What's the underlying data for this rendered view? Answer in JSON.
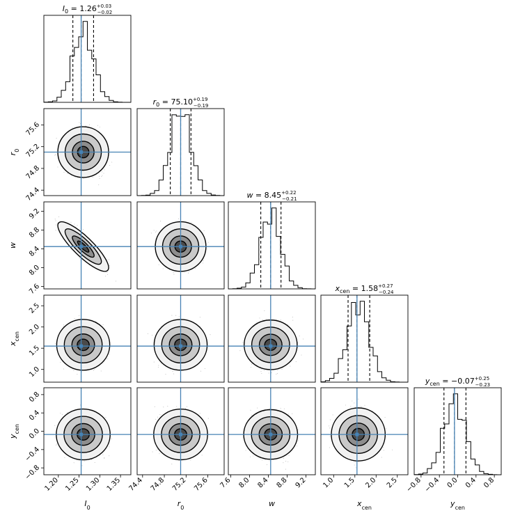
{
  "chart_data": {
    "type": "scatter",
    "subtype": "corner-plot",
    "parameters": [
      {
        "key": "I0",
        "label": "I",
        "label_sub": "0",
        "title_prefix": "I",
        "title_sub": "0",
        "median": "1.26",
        "err_plus": "+0.03",
        "err_minus": "−0.02",
        "truth": 1.255,
        "q_low": 1.235,
        "q_high": 1.285,
        "range": [
          1.165,
          1.375
        ],
        "ticks": [
          1.2,
          1.25,
          1.3,
          1.35
        ],
        "tick_labels": [
          "1.20",
          "1.25",
          "1.30",
          "1.35"
        ],
        "mean": 1.26,
        "sd": 0.025
      },
      {
        "key": "r0",
        "label": "r",
        "label_sub": "0",
        "title_prefix": "r",
        "title_sub": "0",
        "median": "75.10",
        "err_plus": "+0.19",
        "err_minus": "−0.19",
        "truth": 75.1,
        "q_low": 74.91,
        "q_high": 75.29,
        "range": [
          74.3,
          75.9
        ],
        "ticks": [
          74.4,
          74.8,
          75.2,
          75.6
        ],
        "tick_labels": [
          "74.4",
          "74.8",
          "75.2",
          "75.6"
        ],
        "mean": 75.1,
        "sd": 0.19
      },
      {
        "key": "w",
        "label": "w",
        "label_sub": "",
        "title_prefix": "w",
        "title_sub": "",
        "median": "8.45",
        "err_plus": "+0.22",
        "err_minus": "−0.21",
        "truth": 8.45,
        "q_low": 8.24,
        "q_high": 8.67,
        "range": [
          7.55,
          9.4
        ],
        "ticks": [
          7.6,
          8.0,
          8.4,
          8.8,
          9.2
        ],
        "tick_labels": [
          "7.6",
          "8.0",
          "8.4",
          "8.8",
          "9.2"
        ],
        "mean": 8.45,
        "sd": 0.215
      },
      {
        "key": "xcen",
        "label": "x",
        "label_sub": "cen",
        "title_prefix": "x",
        "title_sub": "cen",
        "median": "1.58",
        "err_plus": "+0.27",
        "err_minus": "−0.24",
        "truth": 1.55,
        "q_low": 1.34,
        "q_high": 1.85,
        "range": [
          0.7,
          2.75
        ],
        "ticks": [
          1.0,
          1.5,
          2.0,
          2.5
        ],
        "tick_labels": [
          "1.0",
          "1.5",
          "2.0",
          "2.5"
        ],
        "y_tick_labels": [
          "1.0",
          "1.5",
          "2.0",
          "2.5"
        ],
        "mean": 1.58,
        "sd": 0.255
      },
      {
        "key": "ycen",
        "label": "y",
        "label_sub": "cen",
        "title_prefix": "y",
        "title_sub": "cen",
        "median": "−0.07",
        "err_plus": "+0.25",
        "err_minus": "−0.23",
        "truth": -0.07,
        "q_low": -0.3,
        "q_high": 0.18,
        "range": [
          -0.95,
          0.95
        ],
        "ticks": [
          -0.8,
          -0.4,
          0.0,
          0.4,
          0.8
        ],
        "tick_labels": [
          "−0.8",
          "−0.4",
          "0.0",
          "0.4",
          "0.8"
        ],
        "mean": -0.07,
        "sd": 0.24
      }
    ],
    "correlations": {
      "I0-w": -0.85
    },
    "truth_color": "#4682b4",
    "grid": false,
    "legend": "none"
  }
}
